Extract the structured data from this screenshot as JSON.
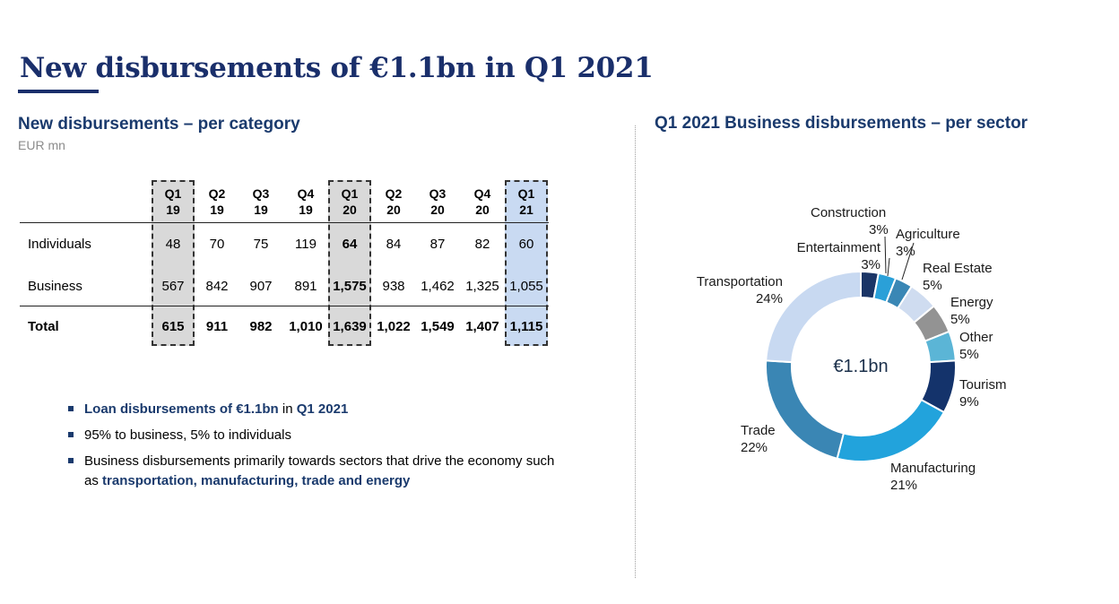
{
  "page": {
    "title": "New disbursements of €1.1bn in Q1 2021",
    "left_heading": "New disbursements – per category",
    "unit": "EUR mn",
    "right_heading": "Q1 2021 Business disbursements – per sector"
  },
  "table": {
    "columns": [
      {
        "q": "Q1",
        "y": "19"
      },
      {
        "q": "Q2",
        "y": "19"
      },
      {
        "q": "Q3",
        "y": "19"
      },
      {
        "q": "Q4",
        "y": "19"
      },
      {
        "q": "Q1",
        "y": "20"
      },
      {
        "q": "Q2",
        "y": "20"
      },
      {
        "q": "Q3",
        "y": "20"
      },
      {
        "q": "Q4",
        "y": "20"
      },
      {
        "q": "Q1",
        "y": "21"
      }
    ],
    "rows": [
      {
        "label": "Individuals",
        "values": [
          "48",
          "70",
          "75",
          "119",
          "64",
          "84",
          "87",
          "82",
          "60"
        ]
      },
      {
        "label": "Business",
        "values": [
          "567",
          "842",
          "907",
          "891",
          "1,575",
          "938",
          "1,462",
          "1,325",
          "1,055"
        ]
      },
      {
        "label": "Total",
        "values": [
          "615",
          "911",
          "982",
          "1,010",
          "1,639",
          "1,022",
          "1,549",
          "1,407",
          "1,115"
        ]
      }
    ]
  },
  "bullets": {
    "b1_strong1": "Loan disbursements of €1.1bn",
    "b1_mid": " in ",
    "b1_strong2": "Q1 2021",
    "b2": "95% to business, 5% to individuals",
    "b3_text": "Business disbursements primarily towards sectors that drive the economy such as ",
    "b3_strong": "transportation, manufacturing, trade and energy"
  },
  "chart_data": {
    "type": "pie",
    "title": "Q1 2021 Business disbursements – per sector",
    "center_label": "€1.1bn",
    "slices": [
      {
        "label": "Construction",
        "value": 3,
        "pct": "3%",
        "color": "#1b3566"
      },
      {
        "label": "Agriculture",
        "value": 3,
        "pct": "3%",
        "color": "#2aa0d8"
      },
      {
        "label": "Entertainment",
        "value": 3,
        "pct": "3%",
        "color": "#3a87b5"
      },
      {
        "label": "Real Estate",
        "value": 5,
        "pct": "5%",
        "color": "#cfdcf0"
      },
      {
        "label": "Energy",
        "value": 5,
        "pct": "5%",
        "color": "#939393"
      },
      {
        "label": "Other",
        "value": 5,
        "pct": "5%",
        "color": "#5bb5d6"
      },
      {
        "label": "Tourism",
        "value": 9,
        "pct": "9%",
        "color": "#14336b"
      },
      {
        "label": "Manufacturing",
        "value": 21,
        "pct": "21%",
        "color": "#22a3dc"
      },
      {
        "label": "Trade",
        "value": 22,
        "pct": "22%",
        "color": "#3a86b4"
      },
      {
        "label": "Transportation",
        "value": 24,
        "pct": "24%",
        "color": "#c8d9f1"
      }
    ]
  }
}
